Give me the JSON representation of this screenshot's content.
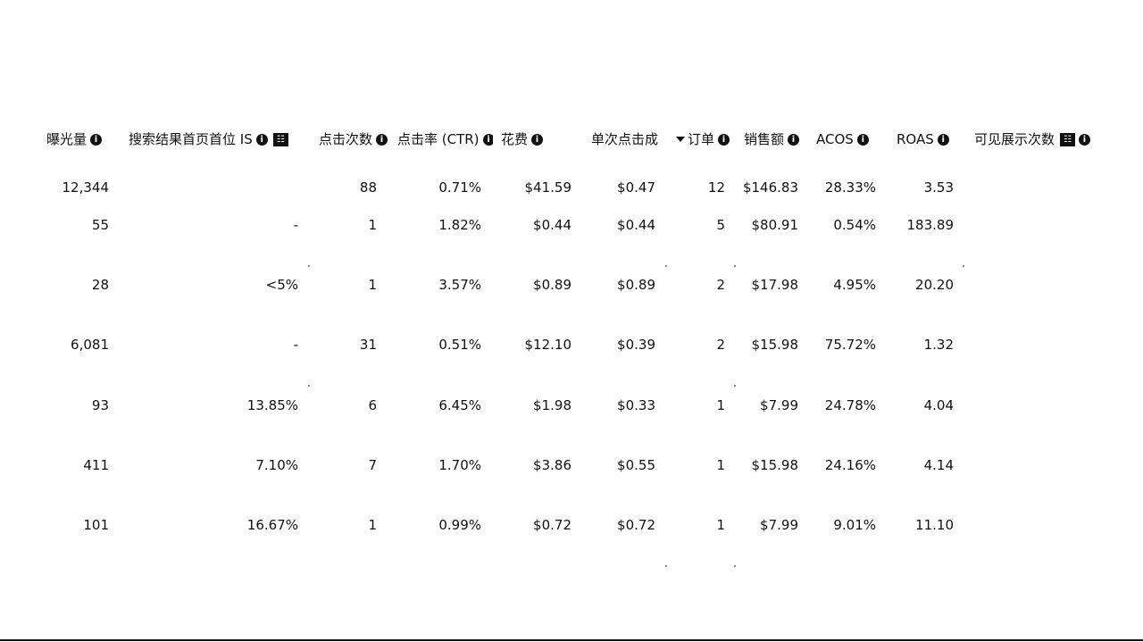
{
  "headers": {
    "impressions": "曝光量",
    "top_of_search_is": "搜索结果首页首位 IS",
    "clicks": "点击次数",
    "ctr": "点击率 (CTR)",
    "spend": "花费",
    "cpc": "单次点击成",
    "orders": "订单",
    "sales": "销售额",
    "acos": "ACOS",
    "roas": "ROAS",
    "viewable_impressions": "可见展示次数"
  },
  "rows": [
    {
      "impressions": "12,344",
      "top_of_search_is": "",
      "clicks": "88",
      "ctr": "0.71%",
      "spend": "$41.59",
      "cpc": "$0.47",
      "orders": "12",
      "sales": "$146.83",
      "acos": "28.33%",
      "roas": "3.53"
    },
    {
      "impressions": "55",
      "top_of_search_is": "-",
      "clicks": "1",
      "ctr": "1.82%",
      "spend": "$0.44",
      "cpc": "$0.44",
      "orders": "5",
      "sales": "$80.91",
      "acos": "0.54%",
      "roas": "183.89"
    },
    {
      "impressions": "28",
      "top_of_search_is": "<5%",
      "clicks": "1",
      "ctr": "3.57%",
      "spend": "$0.89",
      "cpc": "$0.89",
      "orders": "2",
      "sales": "$17.98",
      "acos": "4.95%",
      "roas": "20.20"
    },
    {
      "impressions": "6,081",
      "top_of_search_is": "-",
      "clicks": "31",
      "ctr": "0.51%",
      "spend": "$12.10",
      "cpc": "$0.39",
      "orders": "2",
      "sales": "$15.98",
      "acos": "75.72%",
      "roas": "1.32"
    },
    {
      "impressions": "93",
      "top_of_search_is": "13.85%",
      "clicks": "6",
      "ctr": "6.45%",
      "spend": "$1.98",
      "cpc": "$0.33",
      "orders": "1",
      "sales": "$7.99",
      "acos": "24.78%",
      "roas": "4.04"
    },
    {
      "impressions": "411",
      "top_of_search_is": "7.10%",
      "clicks": "7",
      "ctr": "1.70%",
      "spend": "$3.86",
      "cpc": "$0.55",
      "orders": "1",
      "sales": "$15.98",
      "acos": "24.16%",
      "roas": "4.14"
    },
    {
      "impressions": "101",
      "top_of_search_is": "16.67%",
      "clicks": "1",
      "ctr": "0.99%",
      "spend": "$0.72",
      "cpc": "$0.72",
      "orders": "1",
      "sales": "$7.99",
      "acos": "9.01%",
      "roas": "11.10"
    }
  ]
}
